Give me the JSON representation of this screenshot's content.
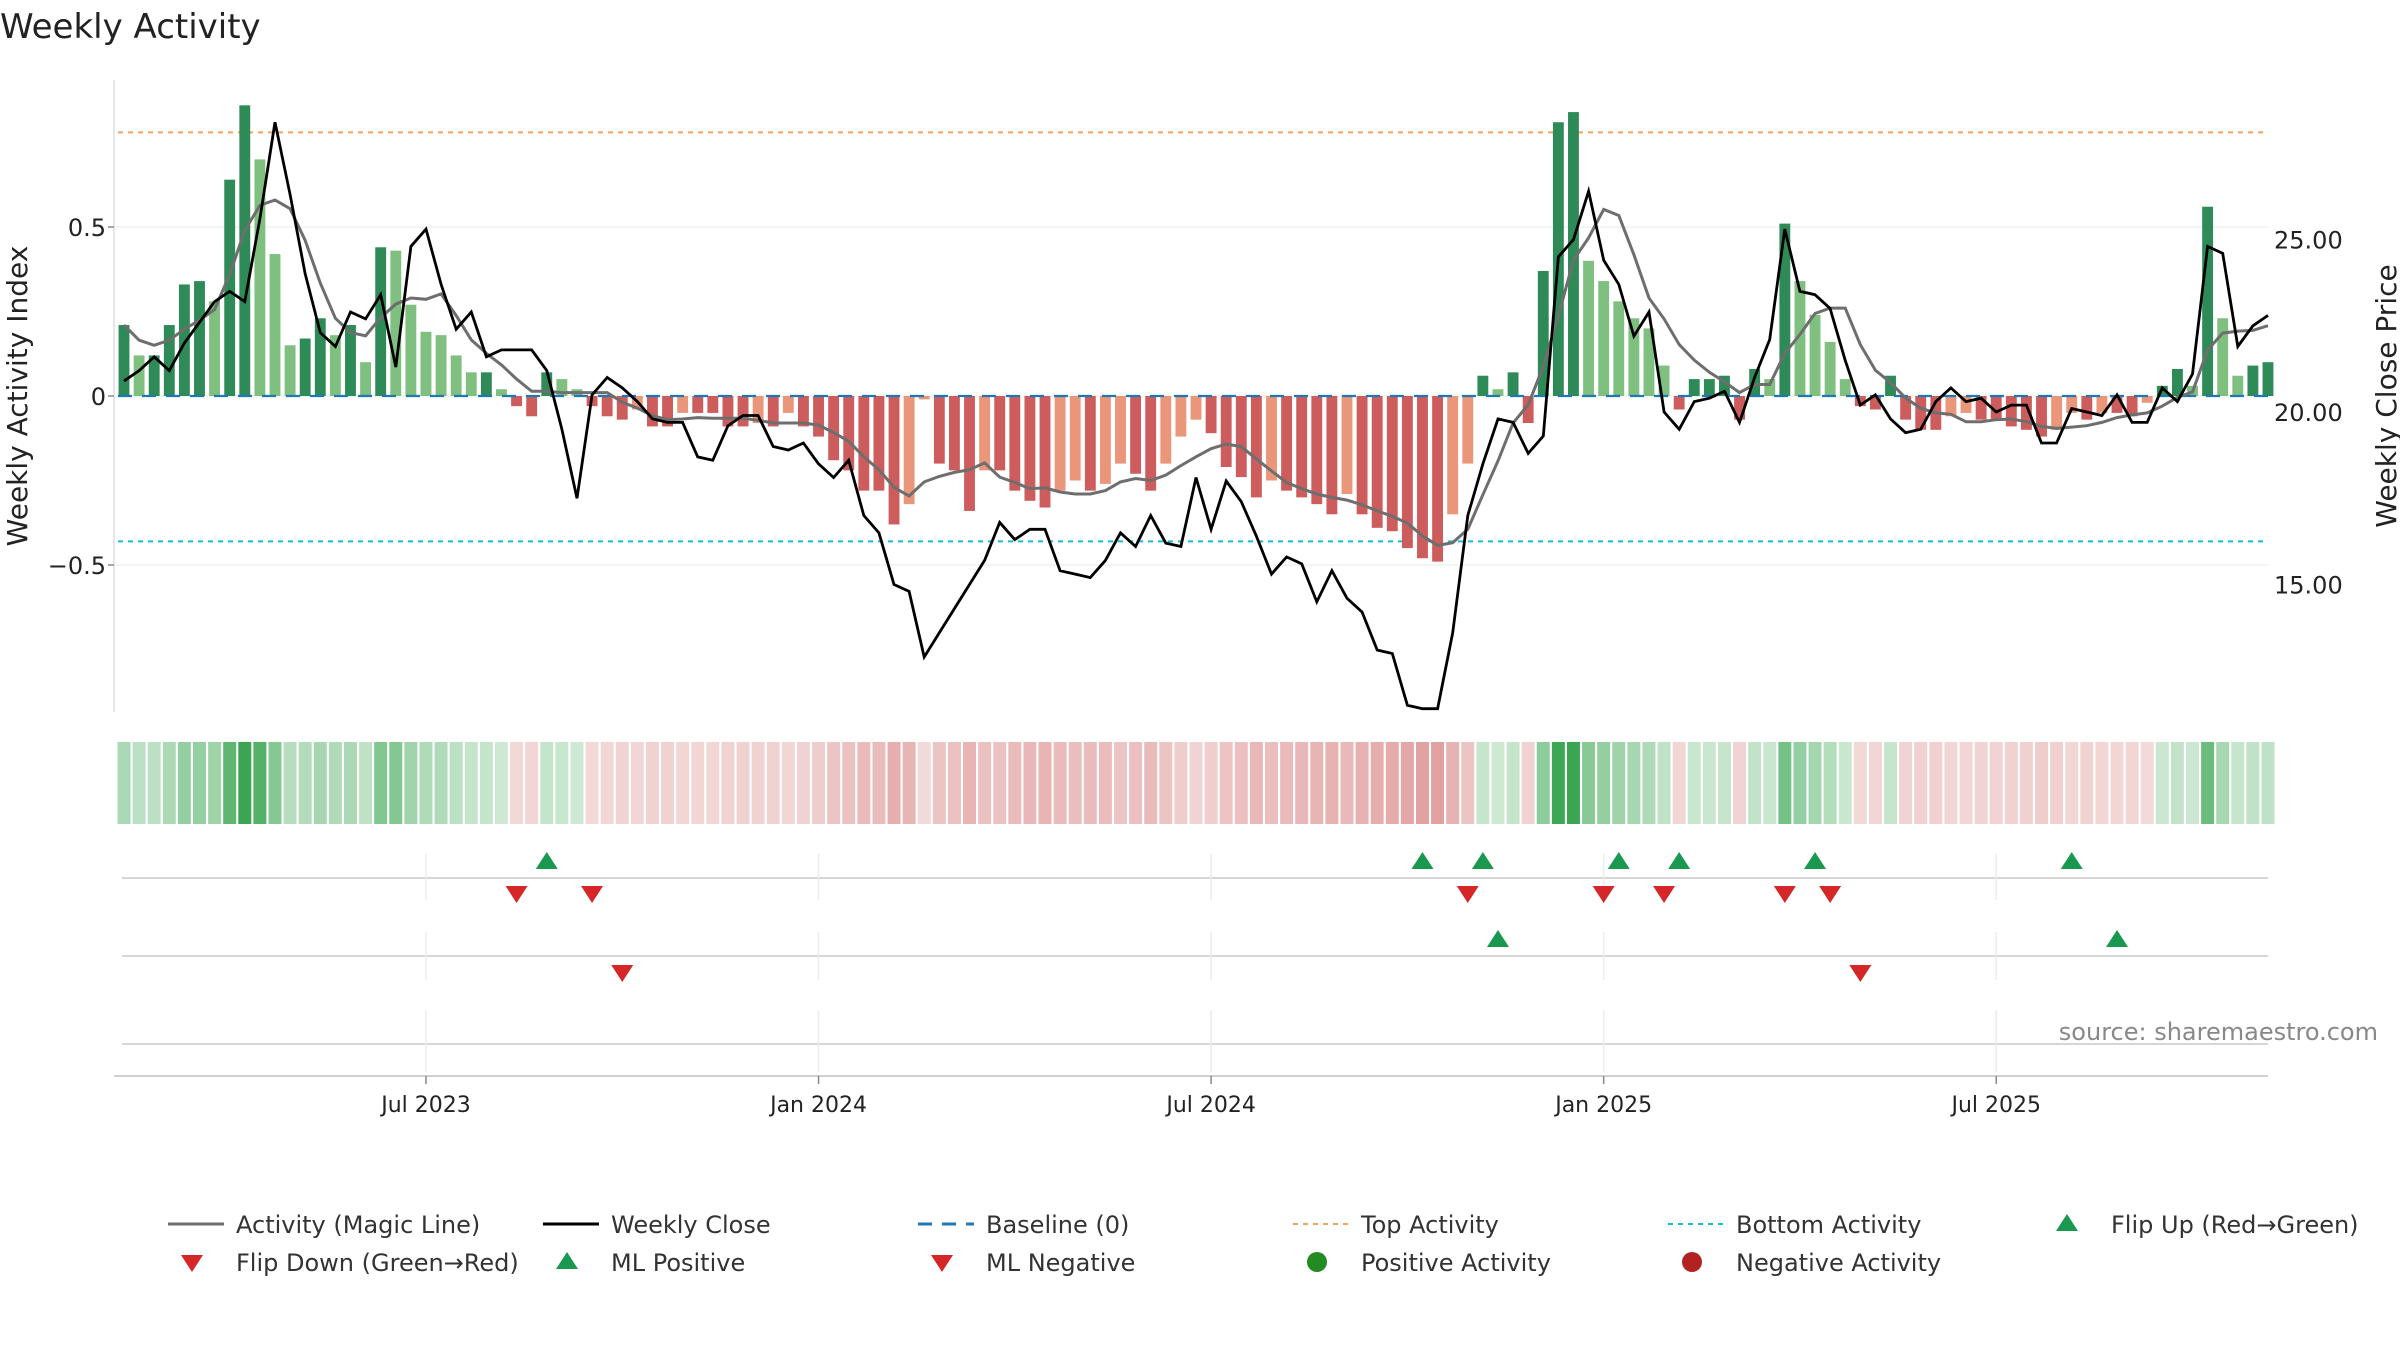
{
  "chart_data": {
    "type": "bar",
    "title": "Weekly Activity",
    "ylabel": "Weekly Activity Index",
    "y2label": "Weekly Close Price",
    "source": "source: sharemaestro.com",
    "ylim": [
      -0.95,
      0.95
    ],
    "y2lim": [
      12.0,
      29.0
    ],
    "y_ticks": [
      {
        "value": 0.5,
        "label": "0.5"
      },
      {
        "value": 0,
        "label": "0"
      },
      {
        "value": -0.5,
        "label": "−0.5"
      }
    ],
    "y2_ticks": [
      {
        "value": 25,
        "label": "25.00"
      },
      {
        "value": 20,
        "label": "20.00"
      },
      {
        "value": 15,
        "label": "15.00"
      }
    ],
    "x_ticks": [
      {
        "index": 20,
        "label": "Jul 2023"
      },
      {
        "index": 46,
        "label": "Jan 2024"
      },
      {
        "index": 72,
        "label": "Jul 2024"
      },
      {
        "index": 98,
        "label": "Jan 2025"
      },
      {
        "index": 124,
        "label": "Jul 2025"
      }
    ],
    "top_activity": 0.78,
    "bottom_activity": -0.43,
    "activity": [
      0.21,
      0.12,
      0.12,
      0.21,
      0.33,
      0.34,
      0.28,
      0.64,
      0.86,
      0.7,
      0.42,
      0.15,
      0.17,
      0.23,
      0.18,
      0.21,
      0.1,
      0.44,
      0.43,
      0.27,
      0.19,
      0.18,
      0.12,
      0.07,
      0.07,
      0.02,
      -0.03,
      -0.06,
      0.07,
      0.05,
      0.02,
      -0.03,
      -0.06,
      -0.07,
      -0.04,
      -0.09,
      -0.09,
      -0.05,
      -0.05,
      -0.05,
      -0.09,
      -0.09,
      -0.08,
      -0.09,
      -0.05,
      -0.09,
      -0.12,
      -0.19,
      -0.22,
      -0.28,
      -0.28,
      -0.38,
      -0.32,
      -0.01,
      -0.2,
      -0.22,
      -0.34,
      -0.22,
      -0.22,
      -0.28,
      -0.31,
      -0.33,
      -0.28,
      -0.25,
      -0.28,
      -0.26,
      -0.2,
      -0.23,
      -0.28,
      -0.2,
      -0.12,
      -0.07,
      -0.11,
      -0.21,
      -0.24,
      -0.3,
      -0.25,
      -0.28,
      -0.3,
      -0.32,
      -0.35,
      -0.29,
      -0.35,
      -0.39,
      -0.4,
      -0.45,
      -0.48,
      -0.49,
      -0.35,
      -0.2,
      0.06,
      0.02,
      0.07,
      -0.08,
      0.37,
      0.81,
      0.84,
      0.4,
      0.34,
      0.28,
      0.23,
      0.2,
      0.09,
      -0.04,
      0.05,
      0.05,
      0.06,
      -0.07,
      0.08,
      0.05,
      0.51,
      0.34,
      0.24,
      0.16,
      0.05,
      -0.03,
      -0.04,
      0.06,
      -0.07,
      -0.1,
      -0.1,
      -0.06,
      -0.05,
      -0.07,
      -0.07,
      -0.09,
      -0.1,
      -0.12,
      -0.1,
      -0.05,
      -0.07,
      -0.05,
      -0.05,
      -0.06,
      -0.02,
      0.03,
      0.08,
      0.03,
      0.56,
      0.23,
      0.06,
      0.09,
      0.1
    ],
    "close": [
      20.9,
      21.2,
      21.6,
      21.2,
      22.0,
      22.6,
      23.2,
      23.5,
      23.2,
      25.6,
      28.4,
      26.3,
      24.0,
      22.3,
      21.9,
      22.9,
      22.7,
      23.4,
      21.3,
      24.8,
      25.3,
      23.7,
      22.4,
      22.9,
      21.6,
      21.8,
      21.8,
      21.8,
      21.2,
      19.5,
      17.5,
      20.5,
      21.0,
      20.7,
      20.3,
      19.8,
      19.7,
      19.7,
      18.7,
      18.6,
      19.6,
      19.9,
      19.9,
      19.0,
      18.9,
      19.1,
      18.5,
      18.1,
      18.6,
      17.0,
      16.5,
      15.0,
      14.8,
      12.9,
      13.6,
      14.3,
      15.0,
      15.7,
      16.8,
      16.3,
      16.6,
      16.6,
      15.4,
      15.3,
      15.2,
      15.7,
      16.5,
      16.1,
      17.0,
      16.2,
      16.1,
      18.1,
      16.6,
      18.0,
      17.4,
      16.4,
      15.3,
      15.8,
      15.6,
      14.5,
      15.4,
      14.6,
      14.2,
      13.1,
      13.0,
      11.5,
      11.4,
      11.4,
      13.6,
      17.0,
      18.5,
      19.8,
      19.7,
      18.8,
      19.3,
      24.5,
      25.0,
      26.4,
      24.4,
      23.7,
      22.2,
      22.9,
      20.0,
      19.5,
      20.3,
      20.4,
      20.6,
      19.7,
      21.0,
      22.1,
      25.3,
      23.5,
      23.4,
      23.0,
      21.5,
      20.2,
      20.5,
      19.8,
      19.4,
      19.5,
      20.3,
      20.7,
      20.3,
      20.4,
      20.0,
      20.2,
      20.2,
      19.1,
      19.1,
      20.1,
      20.0,
      19.9,
      20.5,
      19.7,
      19.7,
      20.7,
      20.3,
      21.1,
      24.8,
      24.6,
      21.9,
      22.5,
      22.8
    ],
    "magic_line_note": "",
    "flip_up_index": [
      28,
      86,
      90,
      99,
      103,
      112,
      129
    ],
    "flip_down_index": [
      26,
      31,
      89,
      98,
      102,
      110,
      113
    ],
    "ml_positive_index": [
      91,
      132
    ],
    "ml_negative_index": [
      33,
      115
    ],
    "legend": [
      {
        "key": "magic",
        "label": "Activity (Magic Line)"
      },
      {
        "key": "close",
        "label": "Weekly Close"
      },
      {
        "key": "baseline",
        "label": "Baseline (0)"
      },
      {
        "key": "top",
        "label": "Top Activity"
      },
      {
        "key": "bottom",
        "label": "Bottom Activity"
      },
      {
        "key": "flipup",
        "label": "Flip Up (Red→Green)"
      },
      {
        "key": "flipdown",
        "label": "Flip Down (Green→Red)"
      },
      {
        "key": "mlpos",
        "label": "ML Positive"
      },
      {
        "key": "mlneg",
        "label": "ML Negative"
      },
      {
        "key": "posact",
        "label": "Positive Activity"
      },
      {
        "key": "negact",
        "label": "Negative Activity"
      }
    ],
    "colors": {
      "pos_strong": "#2e8b57",
      "pos_light": "#7fbf7f",
      "neg_strong": "#cd5c5c",
      "neg_light": "#e9967a",
      "magic_line": "#6e6e6e",
      "close_line": "#000000",
      "baseline": "#1f77b4",
      "top": "#f4a460",
      "bottom": "#17becf",
      "flip_up": "#1a9850",
      "flip_down": "#d62728",
      "pos_dot": "#228b22",
      "neg_dot": "#b22222"
    }
  }
}
